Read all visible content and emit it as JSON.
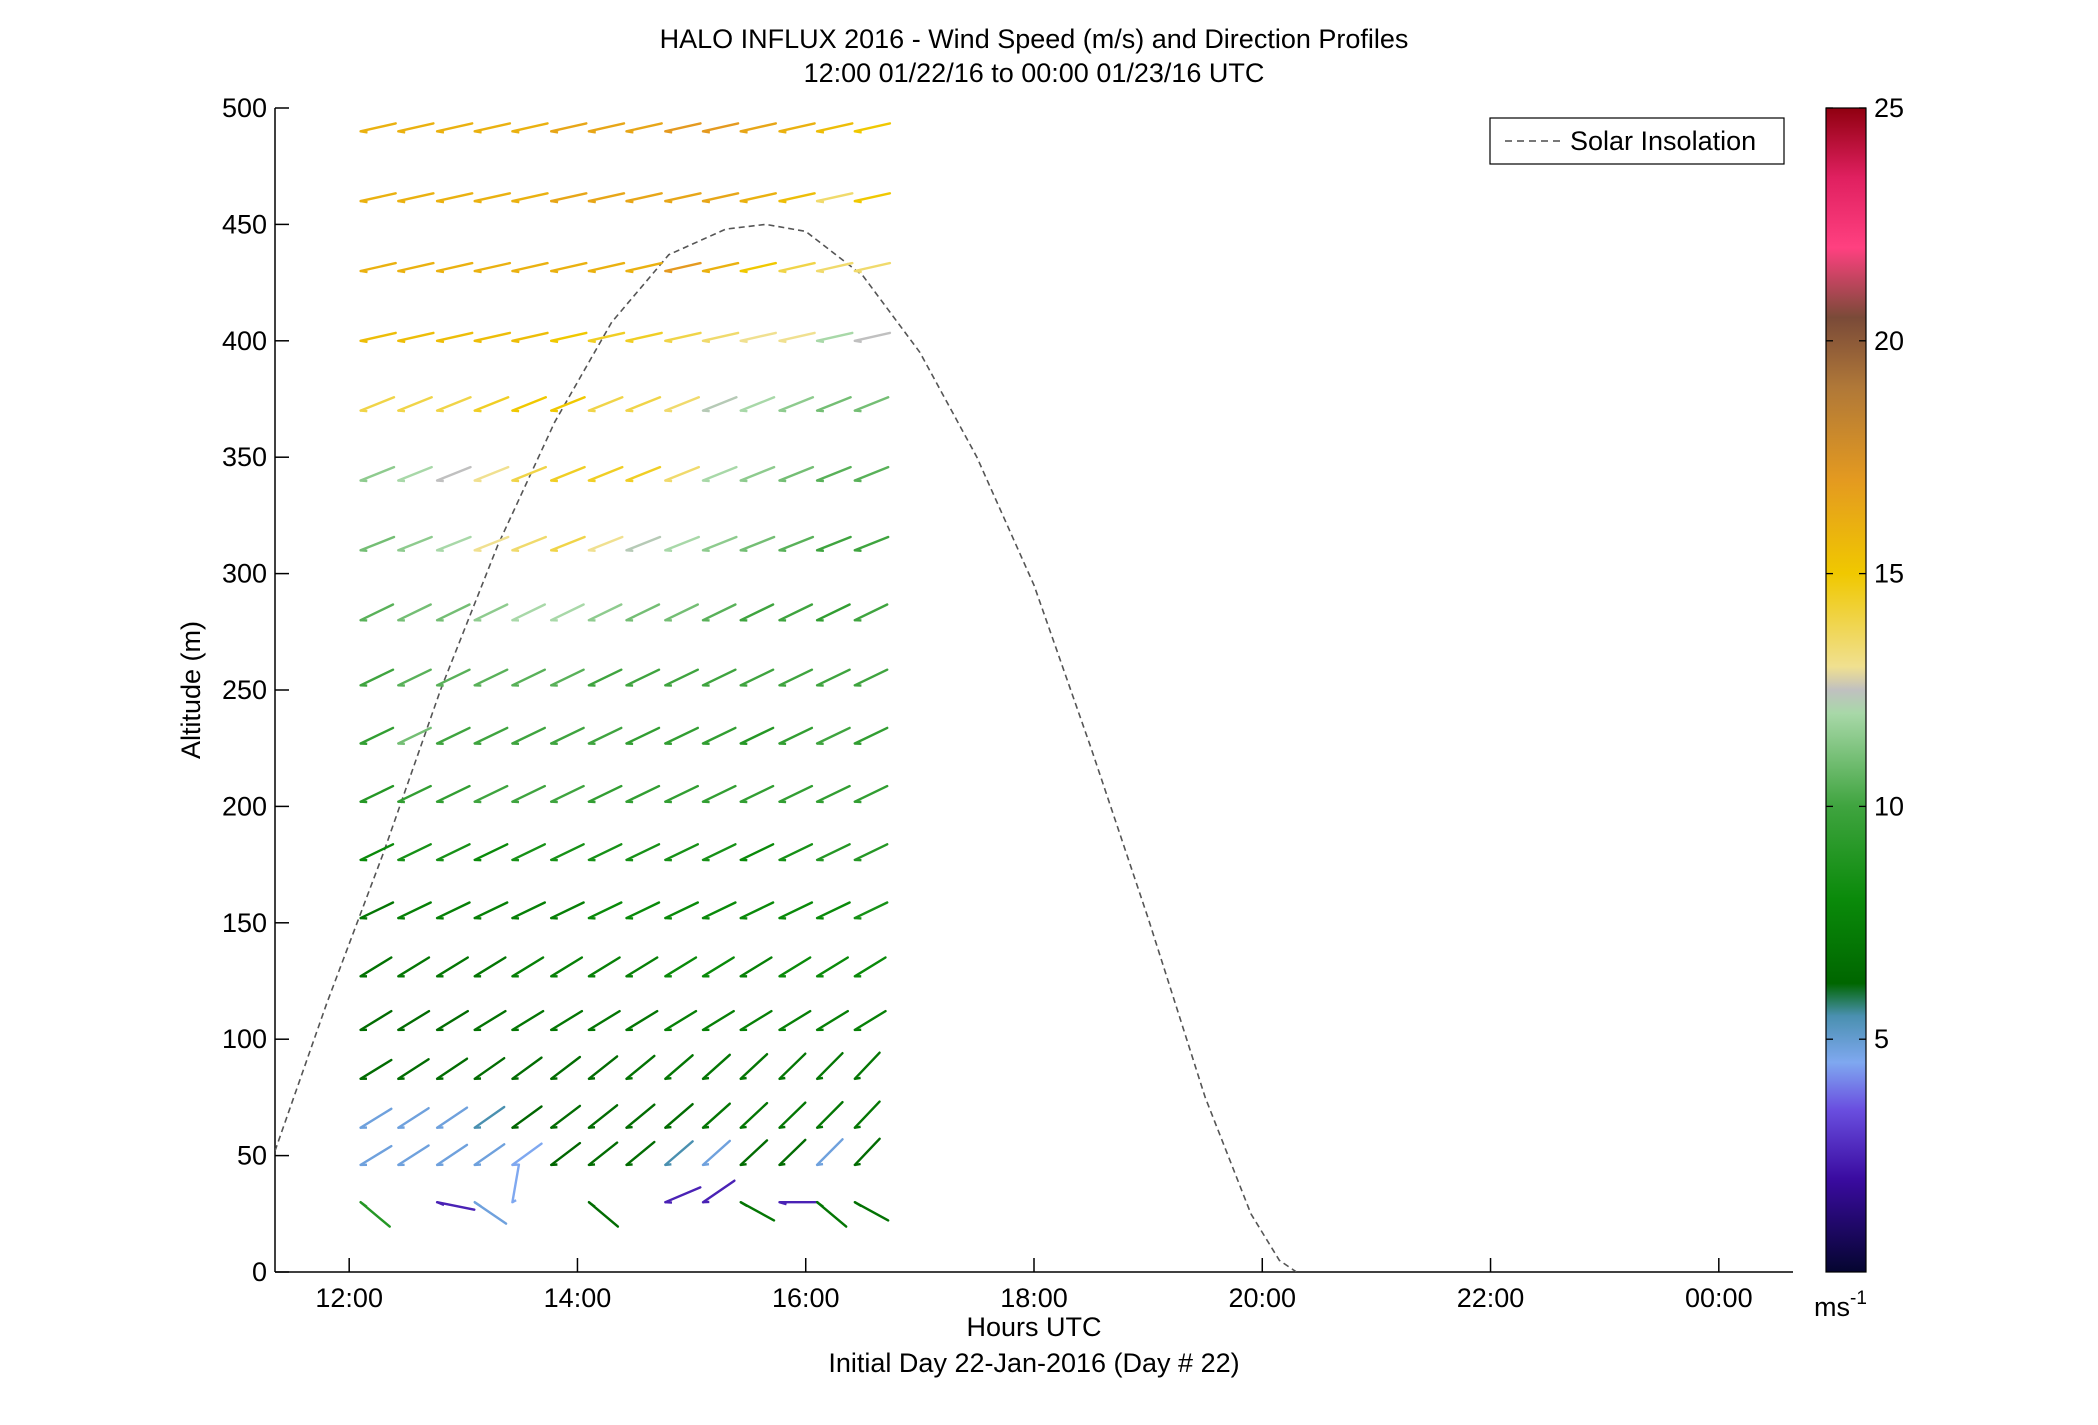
{
  "chart_data": {
    "type": "wind_barb_profile",
    "title": "HALO INFLUX 2016 - Wind Speed (m/s) and Direction Profiles",
    "subtitle": "12:00 01/22/16 to 00:00 01/23/16  UTC",
    "xlabel": "Hours UTC",
    "xlabel2": "Initial Day 22-Jan-2016 (Day # 22)",
    "ylabel": "Altitude (m)",
    "xlim": [
      11.35,
      24.65
    ],
    "ylim": [
      0,
      500
    ],
    "x_ticks": [
      12,
      14,
      16,
      18,
      20,
      22,
      24
    ],
    "x_tick_labels": [
      "12:00",
      "14:00",
      "16:00",
      "18:00",
      "20:00",
      "22:00",
      "00:00"
    ],
    "y_ticks": [
      0,
      50,
      100,
      150,
      200,
      250,
      300,
      350,
      400,
      450,
      500
    ],
    "y_tick_labels": [
      "0",
      "50",
      "100",
      "150",
      "200",
      "250",
      "300",
      "350",
      "400",
      "450",
      "500"
    ],
    "legend": {
      "label": "Solar Insolation",
      "placement": "top-right",
      "style": "dashed",
      "color": "#666666"
    },
    "colorbar": {
      "range": [
        0,
        25
      ],
      "ticks": [
        5,
        10,
        15,
        20,
        25
      ],
      "tick_labels": [
        "5",
        "10",
        "15",
        "20",
        "25"
      ],
      "unit_label": "ms",
      "unit_exponent": "-1",
      "stops": [
        {
          "v": 0,
          "c": "#050530"
        },
        {
          "v": 2,
          "c": "#3a0ba0"
        },
        {
          "v": 3.5,
          "c": "#6a4fe0"
        },
        {
          "v": 4.5,
          "c": "#7fa8f0"
        },
        {
          "v": 5.5,
          "c": "#4a90b0"
        },
        {
          "v": 6.2,
          "c": "#006600"
        },
        {
          "v": 8,
          "c": "#0a8a0a"
        },
        {
          "v": 10,
          "c": "#3fa43f"
        },
        {
          "v": 12,
          "c": "#a8d8a8"
        },
        {
          "v": 12.5,
          "c": "#c0c0c0"
        },
        {
          "v": 13,
          "c": "#f0e090"
        },
        {
          "v": 15,
          "c": "#f0c800"
        },
        {
          "v": 17,
          "c": "#e49a20"
        },
        {
          "v": 19,
          "c": "#b07838"
        },
        {
          "v": 20.5,
          "c": "#7a4a38"
        },
        {
          "v": 22,
          "c": "#ff4080"
        },
        {
          "v": 23.5,
          "c": "#e02060"
        },
        {
          "v": 25,
          "c": "#900010"
        }
      ]
    },
    "solar_curve": {
      "t": [
        11.35,
        11.8,
        12.3,
        12.8,
        13.3,
        13.8,
        14.3,
        14.8,
        15.3,
        15.65,
        16.0,
        16.5,
        17.0,
        17.5,
        18.0,
        18.5,
        19.0,
        19.5,
        19.9,
        20.15,
        20.3
      ],
      "alt": [
        52,
        115,
        180,
        250,
        312,
        365,
        408,
        437,
        448,
        450,
        447,
        428,
        395,
        350,
        295,
        225,
        152,
        75,
        25,
        5,
        0
      ]
    },
    "wind_series": {
      "times": [
        12.1,
        12.43,
        12.77,
        13.1,
        13.43,
        13.77,
        14.1,
        14.43,
        14.77,
        15.1,
        15.43,
        15.77,
        16.1,
        16.43
      ],
      "levels": [
        {
          "alt": 490,
          "speeds": [
            16,
            16,
            16,
            16,
            16,
            16.5,
            16.5,
            16.5,
            17,
            17,
            16.5,
            16,
            15.5,
            15
          ]
        },
        {
          "alt": 460,
          "speeds": [
            16,
            16,
            16,
            16,
            16,
            16.5,
            16.5,
            16.5,
            16.5,
            16.5,
            16,
            15.5,
            13.5,
            15
          ]
        },
        {
          "alt": 430,
          "speeds": [
            16,
            16,
            16,
            16,
            16,
            16,
            16,
            16,
            17,
            16,
            15,
            14,
            13.5,
            13.5
          ]
        },
        {
          "alt": 400,
          "speeds": [
            15.5,
            15.5,
            15.5,
            15.5,
            15.5,
            15,
            14.5,
            14.5,
            14,
            13.5,
            13,
            13,
            12,
            12.5
          ]
        },
        {
          "alt": 370,
          "speeds": [
            14,
            14,
            14,
            14.5,
            15,
            15,
            14,
            14,
            13.5,
            12.3,
            12,
            11.5,
            11,
            11
          ]
        },
        {
          "alt": 340,
          "speeds": [
            11.5,
            12,
            12.5,
            13,
            14,
            14.5,
            14.5,
            14.5,
            13.5,
            12,
            11.5,
            11,
            10.5,
            10.5
          ]
        },
        {
          "alt": 310,
          "speeds": [
            11,
            11.5,
            12,
            13,
            13.5,
            14,
            13,
            12.3,
            12,
            11.5,
            11,
            10.5,
            10,
            10
          ]
        },
        {
          "alt": 280,
          "speeds": [
            10.5,
            11,
            11,
            11.5,
            12,
            12,
            11.5,
            11,
            11,
            10.5,
            10,
            10,
            9.5,
            10
          ]
        },
        {
          "alt": 252,
          "speeds": [
            10,
            10.5,
            10.5,
            10.5,
            10.5,
            10.5,
            10,
            10,
            10,
            10,
            10,
            10,
            10,
            10
          ]
        },
        {
          "alt": 227,
          "speeds": [
            9.5,
            11,
            10,
            10,
            10,
            10,
            10,
            9.5,
            9.5,
            9.5,
            9,
            9.5,
            10,
            9.5
          ]
        },
        {
          "alt": 202,
          "speeds": [
            9,
            9.5,
            9.5,
            10,
            10,
            10,
            9.5,
            9.5,
            9.5,
            9.5,
            9.5,
            9.5,
            9.5,
            9.5
          ]
        },
        {
          "alt": 177,
          "speeds": [
            8,
            8.5,
            8.5,
            8,
            8.5,
            8.5,
            8.5,
            8.5,
            8.5,
            8.5,
            8,
            8.5,
            9,
            9
          ]
        },
        {
          "alt": 152,
          "speeds": [
            7,
            7.5,
            7.5,
            7.5,
            7.5,
            7.5,
            8,
            8,
            8,
            8,
            8,
            8,
            8,
            8.5
          ]
        },
        {
          "alt": 127,
          "speeds": [
            6.8,
            7,
            7,
            7,
            7.5,
            7.5,
            7.5,
            7.5,
            8,
            8,
            7.5,
            8,
            8,
            8
          ]
        },
        {
          "alt": 104,
          "speeds": [
            6.5,
            6.5,
            6.5,
            6.8,
            7,
            7,
            7,
            7,
            7.5,
            7.5,
            7.5,
            7.5,
            7.5,
            7.5
          ]
        },
        {
          "alt": 83,
          "speeds": [
            6.5,
            6.5,
            6.5,
            6.5,
            6.5,
            6.5,
            6.5,
            6.8,
            7,
            7,
            7,
            7,
            7,
            7
          ]
        },
        {
          "alt": 62,
          "speeds": [
            4.8,
            4.8,
            4.8,
            5.5,
            6.2,
            6.5,
            6.5,
            6.5,
            6.5,
            7,
            7,
            7,
            7,
            7
          ]
        },
        {
          "alt": 46,
          "speeds": [
            4.8,
            4.8,
            4.8,
            4.8,
            4.5,
            6.2,
            6.5,
            6.5,
            5.5,
            4.8,
            6.5,
            6.5,
            4.8,
            6.5
          ]
        }
      ],
      "low_level": {
        "alt": 30,
        "points": [
          {
            "t": 12.1,
            "speed": 9
          },
          {
            "t": 12.77,
            "speed": 2.5
          },
          {
            "t": 13.1,
            "speed": 4.8
          },
          {
            "t": 13.43,
            "speed": 4.5
          },
          {
            "t": 14.1,
            "speed": 6.5
          },
          {
            "t": 14.77,
            "speed": 2.5
          },
          {
            "t": 15.1,
            "speed": 2.5
          },
          {
            "t": 15.43,
            "speed": 7
          },
          {
            "t": 15.77,
            "speed": 2.5
          },
          {
            "t": 16.1,
            "speed": 7
          },
          {
            "t": 16.43,
            "speed": 6.8
          }
        ]
      }
    }
  }
}
